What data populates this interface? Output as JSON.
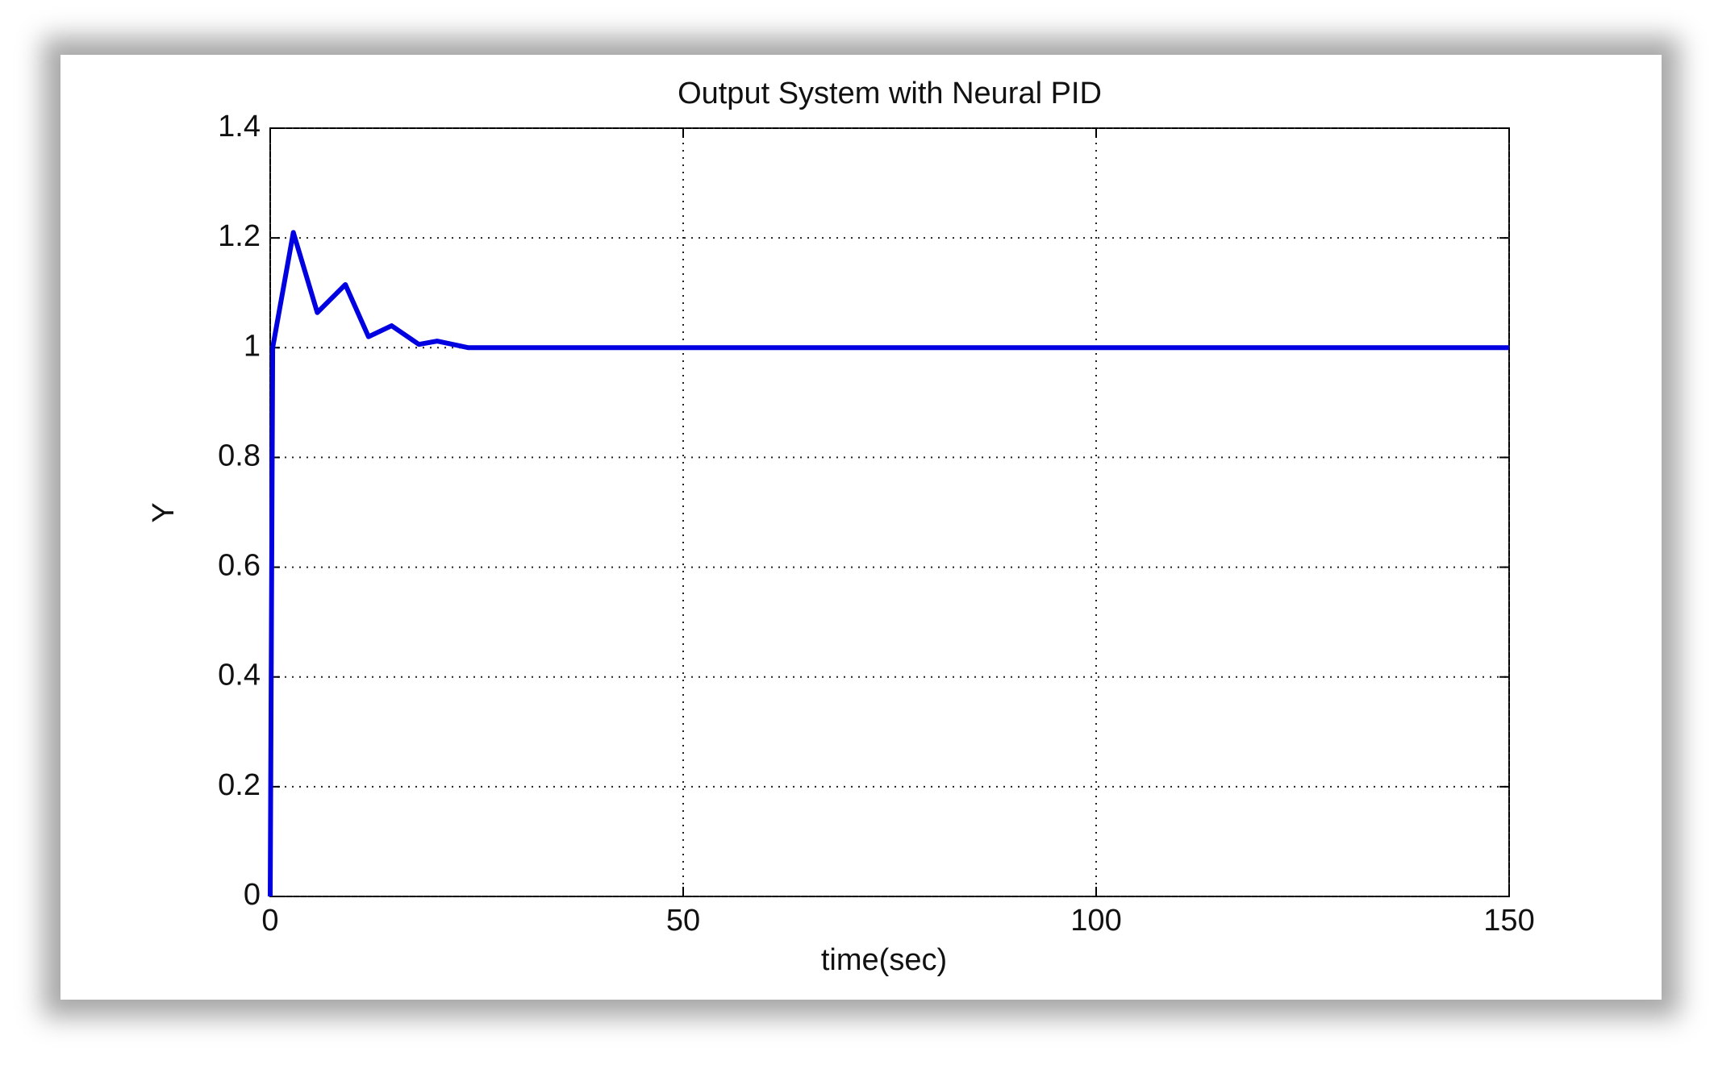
{
  "chart_data": {
    "type": "line",
    "title": "Output System with Neural PID",
    "x_label": "time(sec)",
    "y_label": "Y",
    "series": [
      {
        "name": "Y",
        "color": "#0000e0",
        "x": [
          0,
          0.3,
          2.8,
          5.7,
          9.1,
          11.9,
          14.7,
          18,
          20.2,
          24,
          150
        ],
        "values": [
          0,
          1.0,
          1.21,
          1.064,
          1.115,
          1.02,
          1.04,
          1.006,
          1.012,
          1.0,
          1.0
        ]
      }
    ],
    "xlim": [
      0,
      150
    ],
    "xticks": [
      0,
      50,
      100,
      150
    ],
    "ylim": [
      0,
      1.4
    ],
    "yticks": [
      0,
      0.2,
      0.4,
      0.6,
      0.8,
      1,
      1.2,
      1.4
    ],
    "grid": true
  }
}
